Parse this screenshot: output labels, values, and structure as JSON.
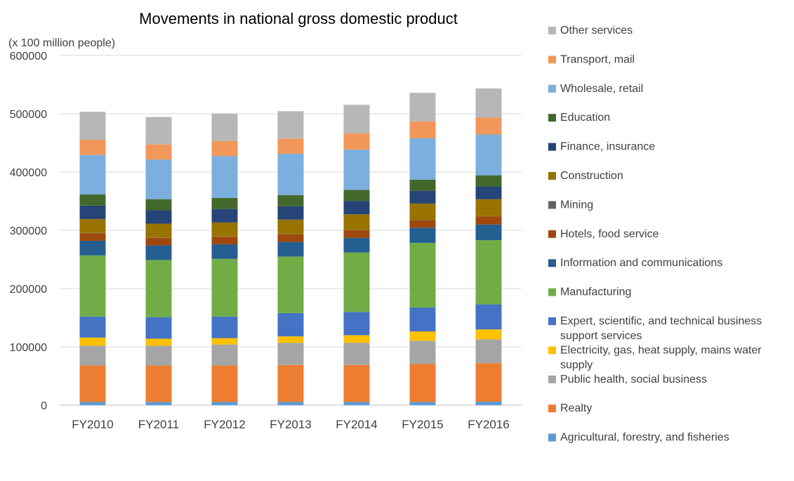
{
  "chart_data": {
    "type": "bar",
    "stacked": true,
    "title": "Movements in national gross domestic product",
    "ylabel": "(x 100 million people)",
    "xlabel": "",
    "ylim": [
      0,
      600000
    ],
    "yticks": [
      "0",
      "100000",
      "200000",
      "300000",
      "400000",
      "500000",
      "600000"
    ],
    "grid": true,
    "legend_position": "right",
    "categories": [
      "FY2010",
      "FY2011",
      "FY2012",
      "FY2013",
      "FY2014",
      "FY2015",
      "FY2016"
    ],
    "series": [
      {
        "name": "Agricultural, forestry, and fisheries",
        "legend_lines": [
          "Agricultural, forestry, and fisheries"
        ],
        "color": "#5b9bd5",
        "values": [
          5500,
          5500,
          5500,
          5500,
          5500,
          5500,
          6000
        ]
      },
      {
        "name": "Realty",
        "legend_lines": [
          "Realty"
        ],
        "color": "#ed7d31",
        "values": [
          62500,
          62500,
          62500,
          63500,
          63500,
          65000,
          66000
        ]
      },
      {
        "name": "Public health, social business",
        "legend_lines": [
          "Public health, social business"
        ],
        "color": "#a5a5a5",
        "values": [
          34000,
          34000,
          36000,
          38000,
          38000,
          40000,
          41000
        ]
      },
      {
        "name": "Electricity, gas, heat supply, mains water supply",
        "legend_lines": [
          "Electricity, gas, heat supply, mains water",
          "supply"
        ],
        "color": "#ffc000",
        "values": [
          14000,
          12000,
          11000,
          11000,
          13000,
          16000,
          17000
        ]
      },
      {
        "name": "Expert, scientific, and technical business support services",
        "legend_lines": [
          "Expert, scientific, and technical business",
          "support services"
        ],
        "color": "#4472c4",
        "values": [
          36000,
          37000,
          37000,
          40000,
          40000,
          41000,
          43000
        ]
      },
      {
        "name": "Manufacturing",
        "legend_lines": [
          "Manufacturing"
        ],
        "color": "#70ad47",
        "values": [
          105000,
          98000,
          99000,
          97000,
          102000,
          111000,
          110000
        ]
      },
      {
        "name": "Information and communications",
        "legend_lines": [
          "Information and communications"
        ],
        "color": "#255e91",
        "values": [
          25000,
          25000,
          25000,
          25000,
          25000,
          26000,
          27000
        ]
      },
      {
        "name": "Hotels, food service",
        "legend_lines": [
          "Hotels, food service"
        ],
        "color": "#9e480e",
        "values": [
          13000,
          13000,
          13000,
          13000,
          13000,
          13000,
          14000
        ]
      },
      {
        "name": "Mining",
        "legend_lines": [
          "Mining"
        ],
        "color": "#636363",
        "values": [
          400,
          400,
          400,
          400,
          400,
          400,
          400
        ]
      },
      {
        "name": "Construction",
        "legend_lines": [
          "Construction"
        ],
        "color": "#997300",
        "values": [
          24000,
          24000,
          24000,
          25000,
          27000,
          28000,
          29000
        ]
      },
      {
        "name": "Finance, insurance",
        "legend_lines": [
          "Finance, insurance"
        ],
        "color": "#264478",
        "values": [
          23000,
          23000,
          23000,
          23000,
          23000,
          22000,
          22000
        ]
      },
      {
        "name": "Education",
        "legend_lines": [
          "Education"
        ],
        "color": "#43682b",
        "values": [
          19000,
          19000,
          19000,
          19000,
          19000,
          19000,
          19000
        ]
      },
      {
        "name": "Wholesale, retail",
        "legend_lines": [
          "Wholesale, retail"
        ],
        "color": "#7cafdd",
        "values": [
          68000,
          68000,
          72000,
          71000,
          69000,
          71000,
          70000
        ]
      },
      {
        "name": "Transport, mail",
        "legend_lines": [
          "Transport, mail"
        ],
        "color": "#f1975a",
        "values": [
          26000,
          26000,
          26000,
          26000,
          28000,
          29000,
          29000
        ]
      },
      {
        "name": "Other services",
        "legend_lines": [
          "Other services"
        ],
        "color": "#b7b7b7",
        "values": [
          48000,
          47000,
          47000,
          47000,
          49000,
          49000,
          50000
        ]
      }
    ]
  }
}
